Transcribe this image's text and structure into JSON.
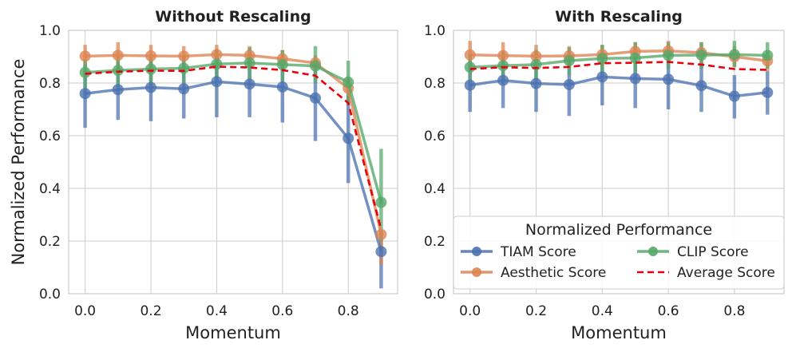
{
  "chart_data": [
    {
      "type": "line",
      "title": "Without Rescaling",
      "xlabel": "Momentum",
      "ylabel": "Normalized Performance",
      "xlim": [
        -0.05,
        0.95
      ],
      "ylim": [
        0.0,
        1.0
      ],
      "xticks": [
        "0.0",
        "0.2",
        "0.4",
        "0.6",
        "0.8"
      ],
      "yticks": [
        "0.0",
        "0.2",
        "0.4",
        "0.6",
        "0.8",
        "1.0"
      ],
      "grid": true,
      "x": [
        0.0,
        0.1,
        0.2,
        0.3,
        0.4,
        0.5,
        0.6,
        0.7,
        0.8,
        0.9
      ],
      "series": [
        {
          "name": "TIAM Score",
          "color": "#4c72b0",
          "values": [
            0.76,
            0.775,
            0.783,
            0.778,
            0.805,
            0.796,
            0.785,
            0.743,
            0.59,
            0.16
          ],
          "err_low": [
            0.63,
            0.66,
            0.655,
            0.665,
            0.67,
            0.67,
            0.65,
            0.58,
            0.42,
            0.02
          ],
          "err_high": [
            0.87,
            0.88,
            0.89,
            0.885,
            0.92,
            0.915,
            0.9,
            0.87,
            0.75,
            0.23
          ]
        },
        {
          "name": "Aesthetic Score",
          "color": "#dd8452",
          "values": [
            0.902,
            0.905,
            0.903,
            0.902,
            0.908,
            0.905,
            0.892,
            0.876,
            0.78,
            0.225
          ],
          "err_low": [
            0.86,
            0.855,
            0.86,
            0.87,
            0.87,
            0.865,
            0.86,
            0.845,
            0.74,
            0.11
          ],
          "err_high": [
            0.945,
            0.955,
            0.945,
            0.94,
            0.945,
            0.94,
            0.925,
            0.905,
            0.825,
            0.24
          ]
        },
        {
          "name": "CLIP Score",
          "color": "#55a868",
          "values": [
            0.84,
            0.848,
            0.853,
            0.856,
            0.872,
            0.876,
            0.87,
            0.865,
            0.803,
            0.347
          ],
          "err_low": [
            0.78,
            0.79,
            0.795,
            0.8,
            0.81,
            0.815,
            0.805,
            0.8,
            0.72,
            0.2
          ],
          "err_high": [
            0.89,
            0.9,
            0.905,
            0.905,
            0.925,
            0.935,
            0.925,
            0.94,
            0.885,
            0.55
          ]
        },
        {
          "name": "Average Score",
          "color": "#e8000b",
          "dashed": true,
          "values": [
            0.835,
            0.843,
            0.847,
            0.846,
            0.862,
            0.859,
            0.849,
            0.828,
            0.724,
            0.244
          ]
        }
      ]
    },
    {
      "type": "line",
      "title": "With Rescaling",
      "xlabel": "Momentum",
      "ylabel": "",
      "xlim": [
        -0.05,
        0.95
      ],
      "ylim": [
        0.0,
        1.0
      ],
      "xticks": [
        "0.0",
        "0.2",
        "0.4",
        "0.6",
        "0.8"
      ],
      "yticks": [
        "0.0",
        "0.2",
        "0.4",
        "0.6",
        "0.8",
        "1.0"
      ],
      "grid": true,
      "x": [
        0.0,
        0.1,
        0.2,
        0.3,
        0.4,
        0.5,
        0.6,
        0.7,
        0.8,
        0.9
      ],
      "series": [
        {
          "name": "TIAM Score",
          "color": "#4c72b0",
          "values": [
            0.792,
            0.81,
            0.798,
            0.794,
            0.823,
            0.817,
            0.814,
            0.79,
            0.75,
            0.764
          ],
          "err_low": [
            0.69,
            0.705,
            0.69,
            0.675,
            0.715,
            0.705,
            0.7,
            0.69,
            0.665,
            0.68
          ],
          "err_high": [
            0.885,
            0.905,
            0.895,
            0.885,
            0.925,
            0.92,
            0.915,
            0.88,
            0.83,
            0.845
          ]
        },
        {
          "name": "Aesthetic Score",
          "color": "#dd8452",
          "values": [
            0.907,
            0.904,
            0.902,
            0.903,
            0.908,
            0.92,
            0.922,
            0.915,
            0.9,
            0.884
          ],
          "err_low": [
            0.86,
            0.86,
            0.855,
            0.86,
            0.86,
            0.875,
            0.875,
            0.87,
            0.86,
            0.845
          ],
          "err_high": [
            0.96,
            0.955,
            0.945,
            0.94,
            0.945,
            0.955,
            0.96,
            0.955,
            0.94,
            0.92
          ]
        },
        {
          "name": "CLIP Score",
          "color": "#55a868",
          "values": [
            0.86,
            0.866,
            0.87,
            0.885,
            0.893,
            0.895,
            0.905,
            0.906,
            0.908,
            0.905
          ],
          "err_low": [
            0.81,
            0.81,
            0.81,
            0.83,
            0.84,
            0.84,
            0.855,
            0.855,
            0.86,
            0.855
          ],
          "err_high": [
            0.91,
            0.92,
            0.925,
            0.935,
            0.945,
            0.955,
            0.955,
            0.955,
            0.96,
            0.955
          ]
        },
        {
          "name": "Average Score",
          "color": "#e8000b",
          "dashed": true,
          "values": [
            0.853,
            0.86,
            0.857,
            0.861,
            0.875,
            0.877,
            0.88,
            0.87,
            0.853,
            0.85
          ]
        }
      ]
    }
  ],
  "legend": {
    "title": "Normalized Performance",
    "placement": "lower-right of second panel",
    "entries": [
      "TIAM Score",
      "Aesthetic Score",
      "CLIP Score",
      "Average Score"
    ]
  }
}
